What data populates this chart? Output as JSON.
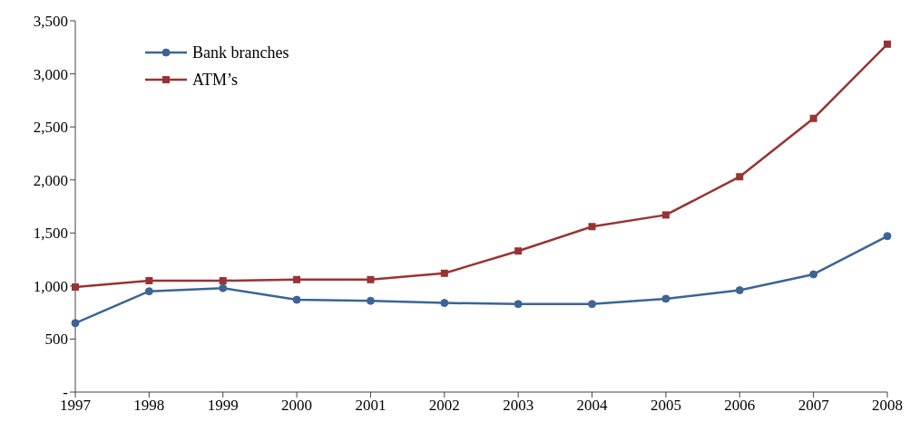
{
  "chart_data": {
    "type": "line",
    "categories": [
      "1997",
      "1998",
      "1999",
      "2000",
      "2001",
      "2002",
      "2003",
      "2004",
      "2005",
      "2006",
      "2007",
      "2008"
    ],
    "series": [
      {
        "name": "Bank branches",
        "color": "#3c6496",
        "marker": "circle",
        "values": [
          650,
          950,
          980,
          870,
          860,
          840,
          830,
          830,
          880,
          960,
          1110,
          1470
        ]
      },
      {
        "name": "ATM’s",
        "color": "#993333",
        "marker": "square",
        "values": [
          990,
          1050,
          1050,
          1060,
          1060,
          1120,
          1330,
          1560,
          1670,
          2030,
          2580,
          3280
        ]
      }
    ],
    "ylim": [
      0,
      3500
    ],
    "yticks": [
      {
        "value": 0,
        "label": "-"
      },
      500,
      {
        "value": 1000,
        "label": "1,000"
      },
      {
        "value": 1500,
        "label": "1,500"
      },
      {
        "value": 2000,
        "label": "2,000"
      },
      {
        "value": 2500,
        "label": "2,500"
      },
      {
        "value": 3000,
        "label": "3,000"
      },
      {
        "value": 3500,
        "label": "3,500"
      }
    ],
    "grid": false,
    "legend": "top left"
  }
}
